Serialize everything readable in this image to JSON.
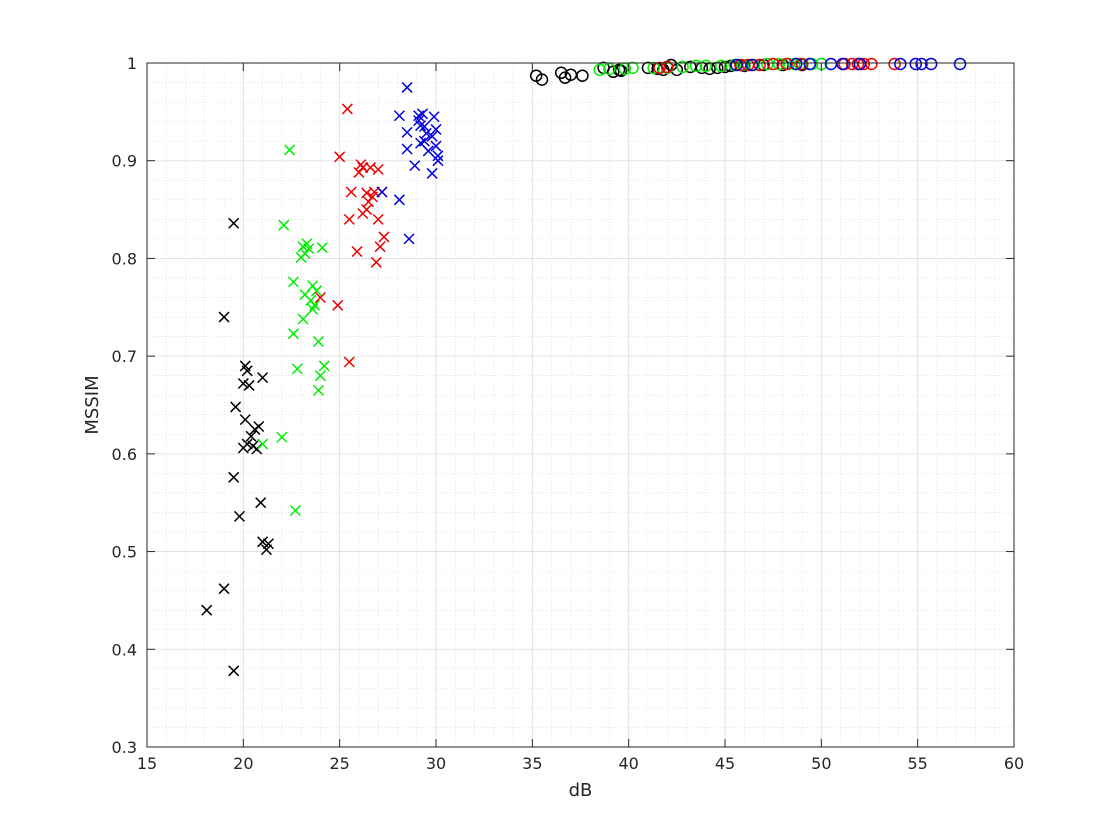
{
  "chart_data": {
    "type": "scatter",
    "title": "",
    "xlabel": "dB",
    "ylabel": "MSSIM",
    "xlim": [
      15,
      60
    ],
    "ylim": [
      0.3,
      1
    ],
    "x_ticks": [
      15,
      20,
      25,
      30,
      35,
      40,
      45,
      50,
      55,
      60
    ],
    "y_ticks": [
      0.3,
      0.4,
      0.5,
      0.6,
      0.7,
      0.8,
      0.9,
      1
    ],
    "grid": true,
    "minor_grid": true,
    "legend": "none",
    "series": [
      {
        "color": "#000000",
        "marker": "x",
        "points": [
          [
            18.1,
            0.44
          ],
          [
            19.0,
            0.462
          ],
          [
            19.5,
            0.378
          ],
          [
            19.5,
            0.576
          ],
          [
            19.8,
            0.536
          ],
          [
            19.5,
            0.836
          ],
          [
            19.0,
            0.74
          ],
          [
            19.6,
            0.648
          ],
          [
            20.0,
            0.672
          ],
          [
            20.1,
            0.69
          ],
          [
            20.2,
            0.685
          ],
          [
            20.3,
            0.67
          ],
          [
            20.1,
            0.635
          ],
          [
            20.0,
            0.606
          ],
          [
            20.2,
            0.61
          ],
          [
            20.5,
            0.608
          ],
          [
            20.4,
            0.618
          ],
          [
            20.6,
            0.625
          ],
          [
            20.8,
            0.628
          ],
          [
            20.7,
            0.605
          ],
          [
            21.0,
            0.678
          ],
          [
            20.9,
            0.55
          ],
          [
            21.0,
            0.51
          ],
          [
            21.2,
            0.502
          ],
          [
            21.3,
            0.508
          ]
        ]
      },
      {
        "color": "#00ee00",
        "marker": "x",
        "points": [
          [
            22.4,
            0.911
          ],
          [
            22.1,
            0.834
          ],
          [
            22.6,
            0.776
          ],
          [
            22.6,
            0.723
          ],
          [
            22.8,
            0.687
          ],
          [
            23.0,
            0.801
          ],
          [
            23.1,
            0.812
          ],
          [
            23.1,
            0.738
          ],
          [
            23.2,
            0.763
          ],
          [
            23.2,
            0.805
          ],
          [
            23.3,
            0.815
          ],
          [
            23.4,
            0.81
          ],
          [
            23.5,
            0.757
          ],
          [
            23.6,
            0.772
          ],
          [
            23.6,
            0.748
          ],
          [
            23.7,
            0.752
          ],
          [
            23.8,
            0.767
          ],
          [
            23.9,
            0.715
          ],
          [
            23.9,
            0.665
          ],
          [
            24.0,
            0.68
          ],
          [
            24.1,
            0.811
          ],
          [
            24.2,
            0.69
          ],
          [
            22.0,
            0.617
          ],
          [
            21.0,
            0.61
          ],
          [
            22.7,
            0.542
          ]
        ]
      },
      {
        "color": "#ee0000",
        "marker": "x",
        "points": [
          [
            25.4,
            0.953
          ],
          [
            25.0,
            0.904
          ],
          [
            25.5,
            0.84
          ],
          [
            25.6,
            0.868
          ],
          [
            25.9,
            0.807
          ],
          [
            26.0,
            0.888
          ],
          [
            26.1,
            0.896
          ],
          [
            26.2,
            0.893
          ],
          [
            26.2,
            0.846
          ],
          [
            26.4,
            0.867
          ],
          [
            26.4,
            0.85
          ],
          [
            26.5,
            0.858
          ],
          [
            26.6,
            0.893
          ],
          [
            26.7,
            0.863
          ],
          [
            26.8,
            0.868
          ],
          [
            27.0,
            0.891
          ],
          [
            27.0,
            0.84
          ],
          [
            26.9,
            0.796
          ],
          [
            27.1,
            0.812
          ],
          [
            27.2,
            0.868
          ],
          [
            27.3,
            0.822
          ],
          [
            24.0,
            0.76
          ],
          [
            24.9,
            0.752
          ],
          [
            25.5,
            0.694
          ]
        ]
      },
      {
        "color": "#0000dd",
        "marker": "x",
        "points": [
          [
            28.5,
            0.975
          ],
          [
            28.1,
            0.946
          ],
          [
            28.1,
            0.86
          ],
          [
            28.5,
            0.929
          ],
          [
            28.5,
            0.912
          ],
          [
            28.6,
            0.82
          ],
          [
            28.9,
            0.895
          ],
          [
            29.1,
            0.941
          ],
          [
            29.1,
            0.946
          ],
          [
            29.2,
            0.936
          ],
          [
            29.2,
            0.918
          ],
          [
            29.3,
            0.948
          ],
          [
            29.4,
            0.92
          ],
          [
            29.4,
            0.935
          ],
          [
            29.5,
            0.928
          ],
          [
            29.6,
            0.91
          ],
          [
            29.8,
            0.925
          ],
          [
            29.8,
            0.887
          ],
          [
            29.9,
            0.945
          ],
          [
            30.0,
            0.932
          ],
          [
            30.0,
            0.915
          ],
          [
            30.1,
            0.9
          ],
          [
            30.1,
            0.905
          ],
          [
            27.2,
            0.868
          ]
        ]
      },
      {
        "color": "#000000",
        "marker": "o",
        "points": [
          [
            35.2,
            0.987
          ],
          [
            35.5,
            0.983
          ],
          [
            36.5,
            0.99
          ],
          [
            36.7,
            0.985
          ],
          [
            37.0,
            0.988
          ],
          [
            37.6,
            0.987
          ],
          [
            38.7,
            0.995
          ],
          [
            39.2,
            0.991
          ],
          [
            39.5,
            0.993
          ],
          [
            39.6,
            0.992
          ],
          [
            41.0,
            0.995
          ],
          [
            41.5,
            0.994
          ],
          [
            41.8,
            0.993
          ],
          [
            42.2,
            0.998
          ],
          [
            42.5,
            0.993
          ],
          [
            43.2,
            0.996
          ],
          [
            43.8,
            0.995
          ],
          [
            44.2,
            0.994
          ],
          [
            44.6,
            0.995
          ],
          [
            45.0,
            0.996
          ],
          [
            45.3,
            0.997
          ],
          [
            46.0,
            0.997
          ],
          [
            47.0,
            0.998
          ],
          [
            48.0,
            0.998
          ],
          [
            49.0,
            0.998
          ]
        ]
      },
      {
        "color": "#00ee00",
        "marker": "o",
        "points": [
          [
            38.5,
            0.993
          ],
          [
            39.0,
            0.994
          ],
          [
            39.8,
            0.994
          ],
          [
            40.2,
            0.995
          ],
          [
            42.0,
            0.995
          ],
          [
            42.8,
            0.996
          ],
          [
            43.5,
            0.997
          ],
          [
            44.0,
            0.997
          ],
          [
            44.8,
            0.997
          ],
          [
            45.5,
            0.998
          ],
          [
            45.9,
            0.998
          ],
          [
            46.5,
            0.998
          ],
          [
            47.2,
            0.999
          ],
          [
            47.8,
            0.999
          ],
          [
            48.3,
            0.999
          ],
          [
            48.6,
            0.999
          ],
          [
            48.9,
            0.999
          ],
          [
            49.5,
            0.999
          ],
          [
            50.0,
            0.999
          ],
          [
            41.3,
            0.995
          ]
        ]
      },
      {
        "color": "#ee0000",
        "marker": "o",
        "points": [
          [
            41.6,
            0.995
          ],
          [
            42.0,
            0.996
          ],
          [
            45.8,
            0.998
          ],
          [
            46.2,
            0.998
          ],
          [
            46.8,
            0.998
          ],
          [
            47.5,
            0.999
          ],
          [
            48.2,
            0.999
          ],
          [
            49.0,
            0.999
          ],
          [
            51.2,
            0.999
          ],
          [
            51.6,
            0.999
          ],
          [
            51.9,
            0.999
          ],
          [
            52.2,
            0.999
          ],
          [
            52.6,
            0.999
          ],
          [
            53.8,
            0.999
          ]
        ]
      },
      {
        "color": "#0000dd",
        "marker": "o",
        "points": [
          [
            45.6,
            0.998
          ],
          [
            46.4,
            0.998
          ],
          [
            48.7,
            0.999
          ],
          [
            49.4,
            0.999
          ],
          [
            50.5,
            0.999
          ],
          [
            51.1,
            0.999
          ],
          [
            52.0,
            0.999
          ],
          [
            54.1,
            0.999
          ],
          [
            54.9,
            0.999
          ],
          [
            55.2,
            0.999
          ],
          [
            55.7,
            0.999
          ],
          [
            57.2,
            0.999
          ]
        ]
      }
    ]
  }
}
